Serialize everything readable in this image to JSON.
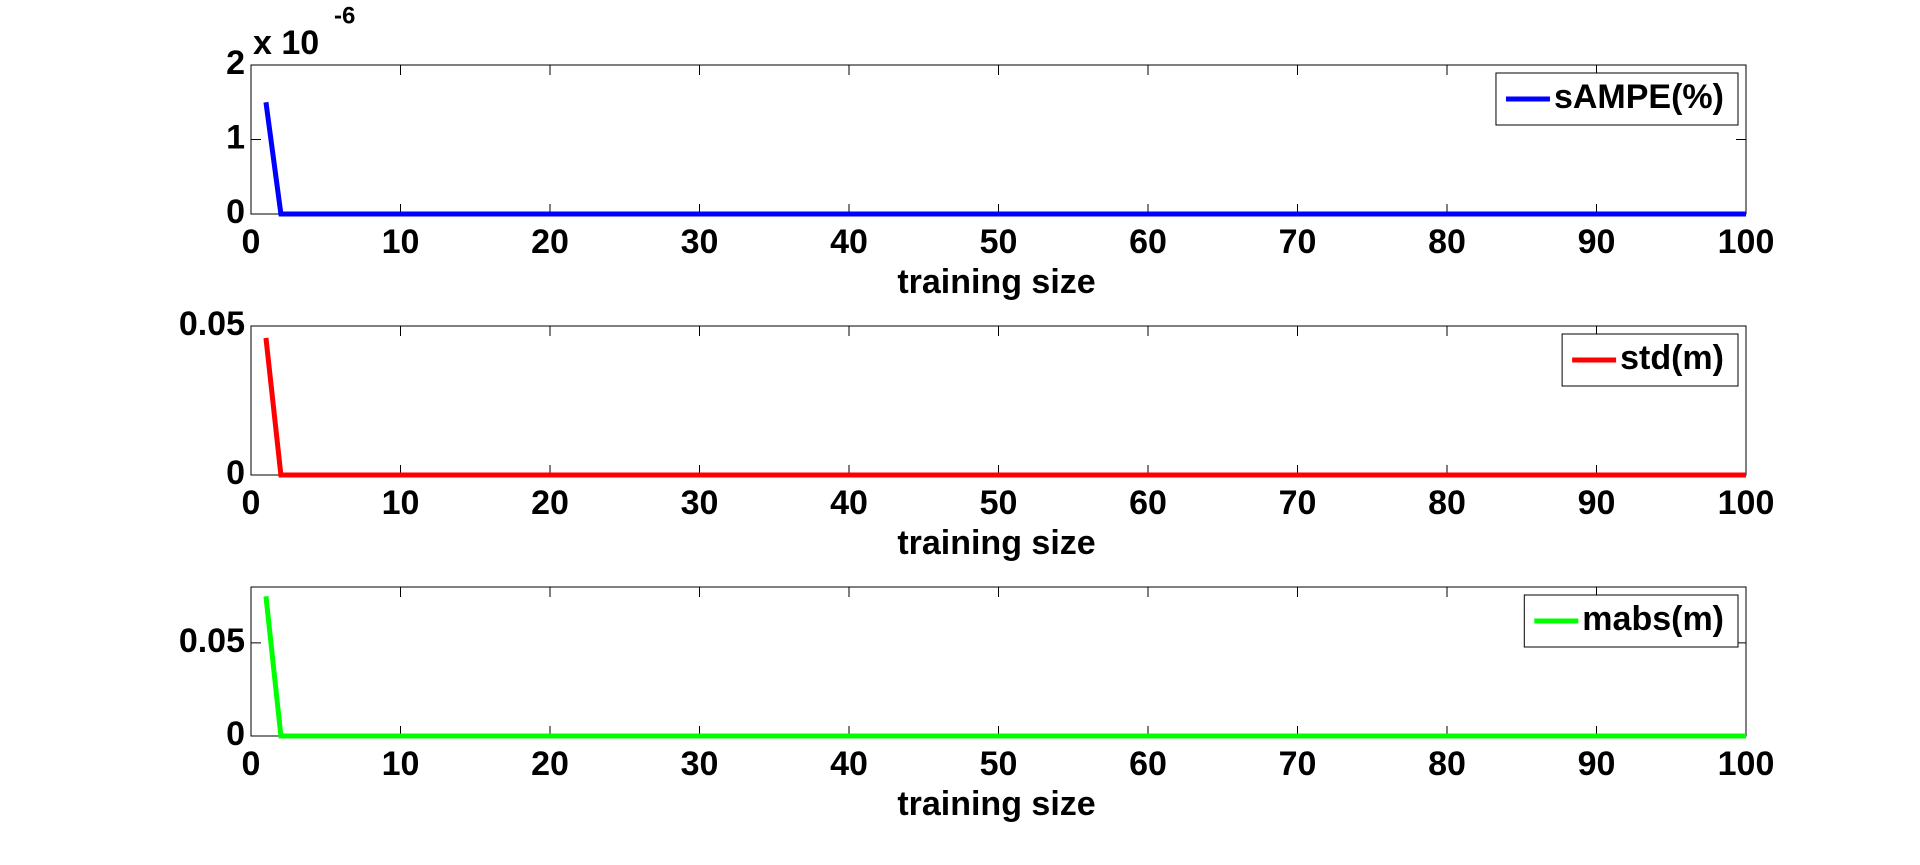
{
  "chart_data": [
    {
      "type": "line",
      "x": [
        1,
        2,
        100
      ],
      "xlim": [
        0,
        100
      ],
      "xticks": [
        0,
        10,
        20,
        30,
        40,
        50,
        60,
        70,
        80,
        90,
        100
      ],
      "ylim": [
        0,
        2
      ],
      "yticks": [
        0,
        1,
        2
      ],
      "y_multiplier": {
        "base": "x 10",
        "exponent": "-6"
      },
      "xlabel": "training size",
      "legend": "upper right",
      "series": [
        {
          "name": "sAMPE(%)",
          "color": "#0000ff",
          "values": [
            1.5,
            0,
            0
          ]
        }
      ]
    },
    {
      "type": "line",
      "x": [
        1,
        2,
        100
      ],
      "xlim": [
        0,
        100
      ],
      "xticks": [
        0,
        10,
        20,
        30,
        40,
        50,
        60,
        70,
        80,
        90,
        100
      ],
      "ylim": [
        0,
        0.05
      ],
      "yticks": [
        0,
        0.05
      ],
      "xlabel": "training size",
      "legend": "upper right",
      "series": [
        {
          "name": "std(m)",
          "color": "#ff0000",
          "values": [
            0.046,
            0,
            0
          ]
        }
      ]
    },
    {
      "type": "line",
      "x": [
        1,
        2,
        100
      ],
      "xlim": [
        0,
        100
      ],
      "xticks": [
        0,
        10,
        20,
        30,
        40,
        50,
        60,
        70,
        80,
        90,
        100
      ],
      "ylim": [
        0,
        0.08
      ],
      "yticks": [
        0,
        0.05
      ],
      "xlabel": "training size",
      "legend": "upper right",
      "series": [
        {
          "name": "mabs(m)",
          "color": "#00ff00",
          "values": [
            0.075,
            0,
            0
          ]
        }
      ]
    }
  ]
}
